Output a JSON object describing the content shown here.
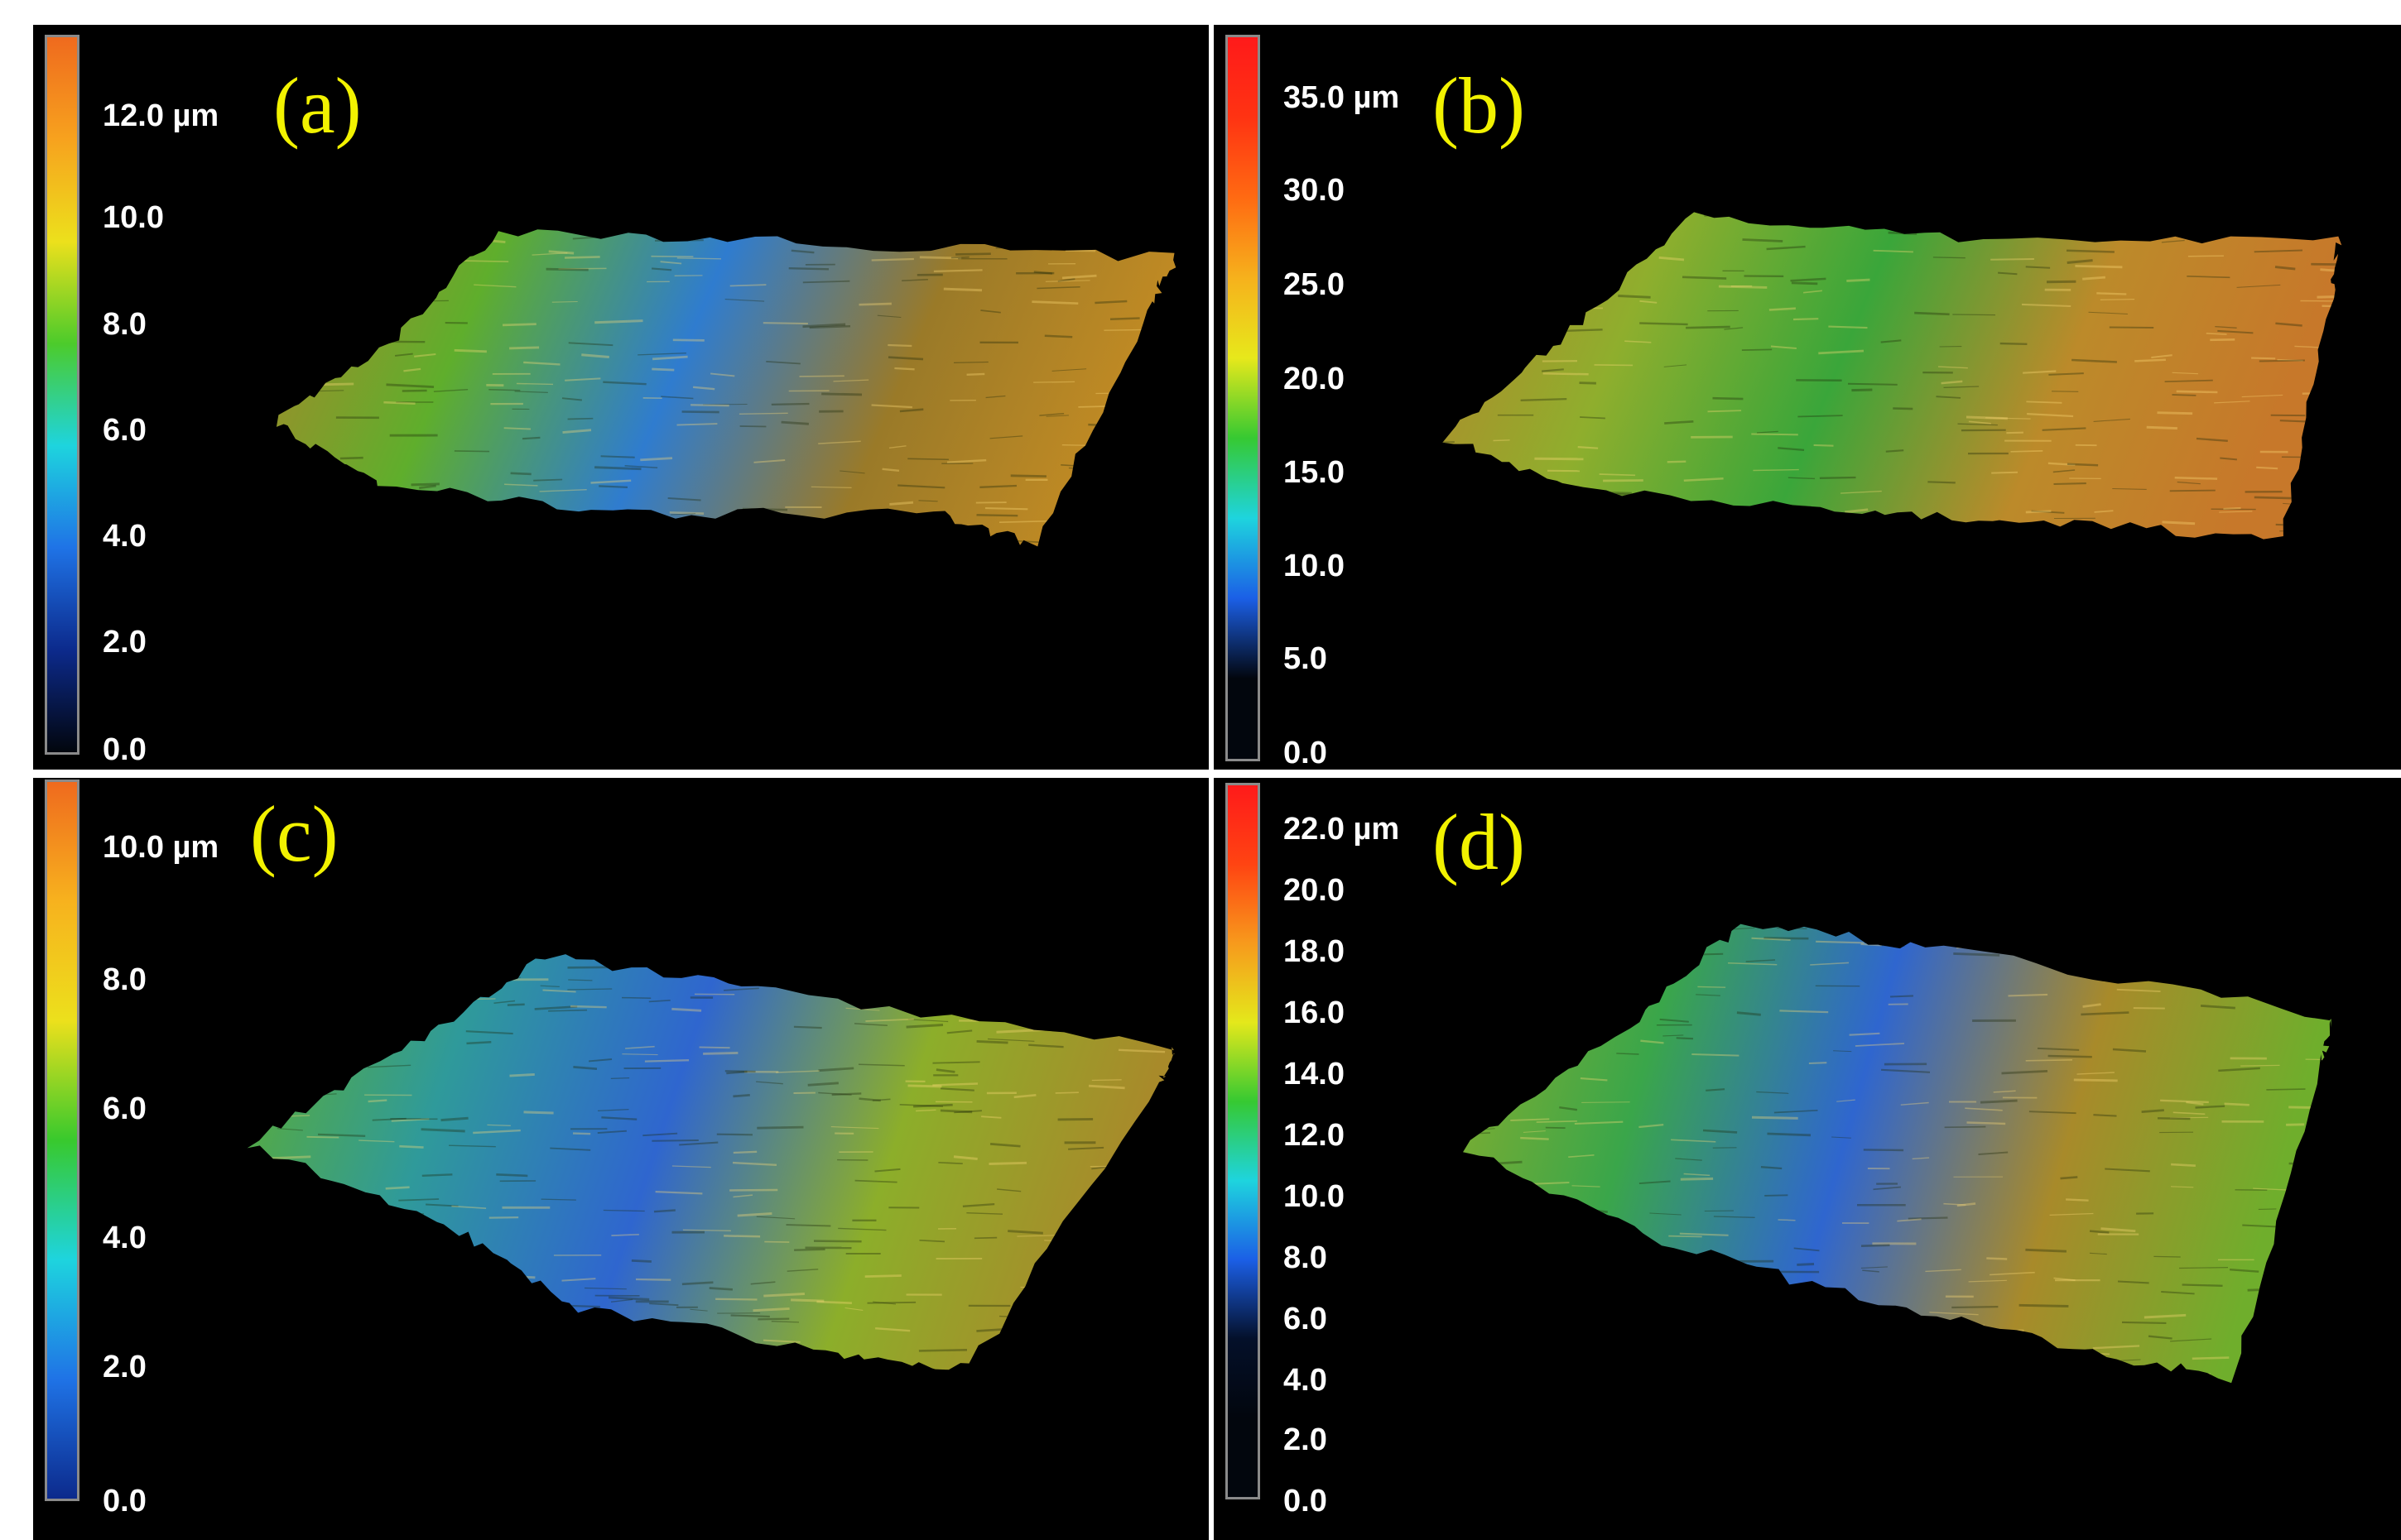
{
  "figure": {
    "panels": [
      {
        "id": "a",
        "label": "(a)",
        "unit_label": "12.0 µm",
        "ticks": [
          "10.0",
          "8.0",
          "6.0",
          "4.0",
          "2.0",
          "0.0"
        ],
        "colorbar_colors": [
          "#ef6a1e",
          "#f7a21e",
          "#ece01c",
          "#4ccb2b",
          "#1ed4de",
          "#1f73e6",
          "#0c2a8c",
          "#02060d"
        ],
        "surface_palette": [
          "#a8882a",
          "#5fae2c",
          "#2f7ccf",
          "#9a7a28",
          "#c08a24"
        ]
      },
      {
        "id": "b",
        "label": "(b)",
        "unit_label": "35.0 µm",
        "ticks": [
          "30.0",
          "25.0",
          "20.0",
          "15.0",
          "10.0",
          "5.0",
          "0.0"
        ],
        "colorbar_colors": [
          "#ff1a1a",
          "#ff3312",
          "#ff6a12",
          "#f6b11c",
          "#e7e81b",
          "#36c932",
          "#1ed4de",
          "#1b5fe6",
          "#02060d",
          "#02060d"
        ],
        "surface_palette": [
          "#b4862b",
          "#8fae2d",
          "#3aa63a",
          "#bc8a2a",
          "#c7782a"
        ]
      },
      {
        "id": "c",
        "label": "(c)",
        "unit_label": "10.0 µm",
        "ticks": [
          "8.0",
          "6.0",
          "4.0",
          "2.0",
          "0.0"
        ],
        "colorbar_colors": [
          "#ef6a1e",
          "#f7b21e",
          "#ece01c",
          "#38c92d",
          "#1ed4de",
          "#1f73e6",
          "#0c2a8c"
        ],
        "surface_palette": [
          "#5fae2c",
          "#2f9a9a",
          "#2f66cf",
          "#8cae2a",
          "#a88a2a"
        ]
      },
      {
        "id": "d",
        "label": "(d)",
        "unit_label": "22.0 µm",
        "ticks": [
          "20.0",
          "18.0",
          "16.0",
          "14.0",
          "12.0",
          "10.0",
          "8.0",
          "6.0",
          "4.0",
          "2.0",
          "0.0"
        ],
        "colorbar_colors": [
          "#ff1a1a",
          "#ff4412",
          "#f79a1c",
          "#e4e81b",
          "#36c932",
          "#1ed4de",
          "#1b5fe6",
          "#04102a",
          "#02060d",
          "#02060d"
        ],
        "surface_palette": [
          "#8aae2c",
          "#3aa64a",
          "#2f66cf",
          "#a88a2a",
          "#6fae2c"
        ]
      }
    ]
  }
}
